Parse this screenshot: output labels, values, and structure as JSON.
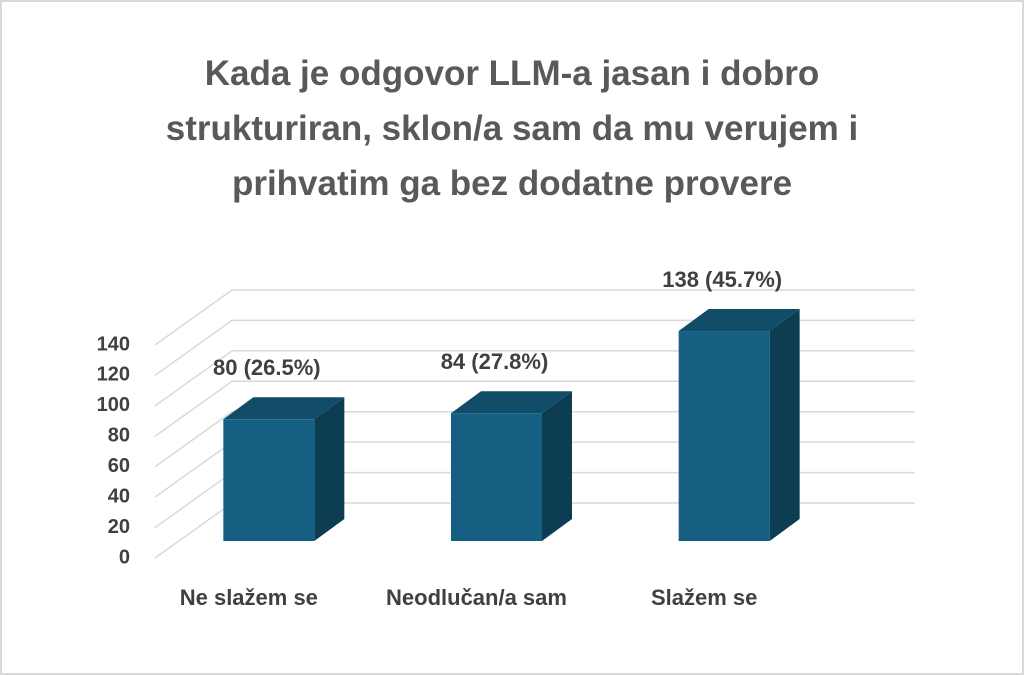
{
  "chart_data": {
    "type": "bar3d",
    "title": "Kada je odgovor LLM-a jasan i dobro strukturiran, sklon/a sam da mu verujem i prihvatim ga bez dodatne provere",
    "categories": [
      "Ne slažem se",
      "Neodlučan/a sam",
      "Slažem se"
    ],
    "values": [
      80,
      84,
      138
    ],
    "value_labels": [
      "80 (26.5%)",
      "84 (27.8%)",
      "138 (45.7%)"
    ],
    "color": "#156082",
    "ylim": [
      0,
      140
    ],
    "yticks": [
      0,
      20,
      40,
      60,
      80,
      100,
      120,
      140
    ],
    "grid": true
  }
}
